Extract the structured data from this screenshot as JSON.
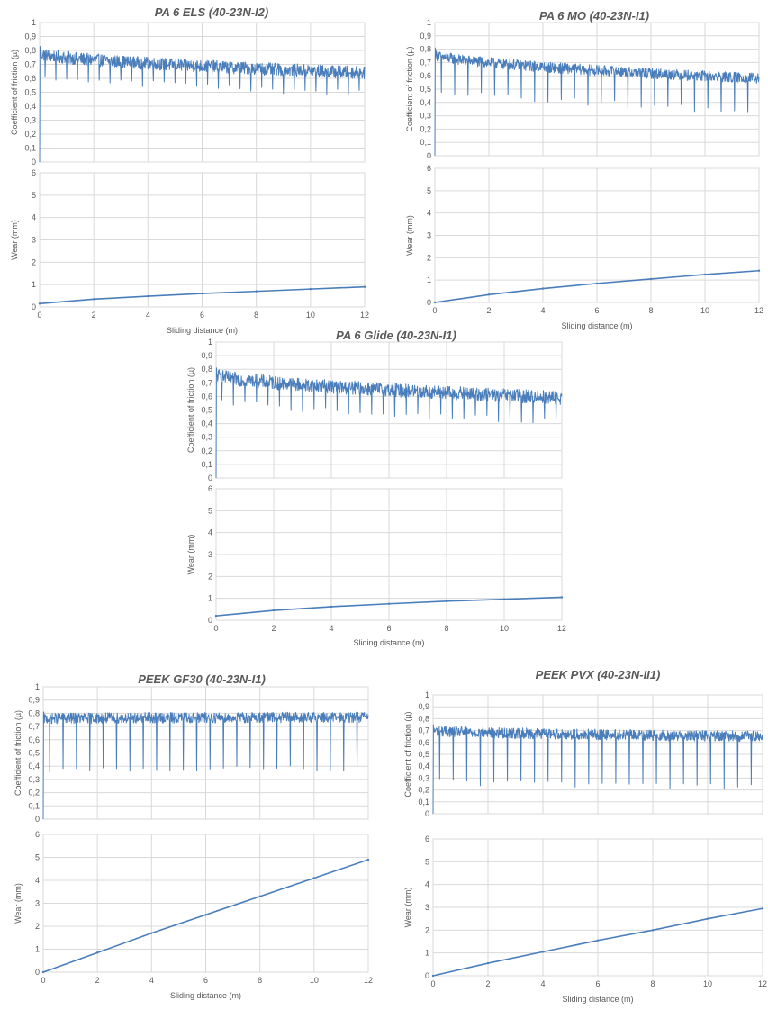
{
  "colors": {
    "series": "#4a7ebb",
    "grid": "#d9d9d9",
    "text": "#595959"
  },
  "chart_data": [
    {
      "type": "line",
      "title": "PA 6 ELS (40-23N-I2)",
      "cof": {
        "ylabel": "Coefficient of friction (µ)",
        "ylim": [
          0,
          1
        ],
        "yticks": [
          "0",
          "0,1",
          "0,2",
          "0,3",
          "0,4",
          "0,5",
          "0,6",
          "0,7",
          "0,8",
          "0,9",
          "1"
        ],
        "xlim": [
          0,
          12
        ],
        "start": 0.78,
        "end": 0.64,
        "noise": 0.09,
        "spikes": 30,
        "spike_depth": 0.12
      },
      "wear": {
        "ylabel": "Wear (mm)",
        "xlabel": "Sliding distance (m)",
        "ylim": [
          0,
          6
        ],
        "yticks": [
          "0",
          "1",
          "2",
          "3",
          "4",
          "5",
          "6"
        ],
        "xlim": [
          0,
          12
        ],
        "xticks": [
          "0",
          "2",
          "4",
          "6",
          "8",
          "10",
          "12"
        ],
        "x": [
          0,
          2,
          4,
          6,
          8,
          10,
          12
        ],
        "y": [
          0.15,
          0.35,
          0.48,
          0.6,
          0.7,
          0.8,
          0.9
        ]
      }
    },
    {
      "type": "line",
      "title": "PA 6 MO (40-23N-I1)",
      "cof": {
        "ylabel": "Coefficient of friction (µ)",
        "ylim": [
          0,
          1
        ],
        "yticks": [
          "0",
          "0,1",
          "0,2",
          "0,3",
          "0,4",
          "0,5",
          "0,6",
          "0,7",
          "0,8",
          "0,9",
          "1"
        ],
        "xlim": [
          0,
          12
        ],
        "start": 0.76,
        "end": 0.58,
        "noise": 0.08,
        "spikes": 24,
        "spike_depth": 0.22
      },
      "wear": {
        "ylabel": "Wear (mm)",
        "xlabel": "Sliding distance (m)",
        "ylim": [
          0,
          6
        ],
        "yticks": [
          "0",
          "1",
          "2",
          "3",
          "4",
          "5",
          "6"
        ],
        "xlim": [
          0,
          12
        ],
        "xticks": [
          "0",
          "2",
          "4",
          "6",
          "8",
          "10",
          "12"
        ],
        "x": [
          0,
          2,
          4,
          6,
          8,
          10,
          12
        ],
        "y": [
          0.0,
          0.35,
          0.62,
          0.85,
          1.05,
          1.25,
          1.42
        ]
      }
    },
    {
      "type": "line",
      "title": "PA 6 Glide (40-23N-I1)",
      "cof": {
        "ylabel": "Coefficient of friction (µ)",
        "ylim": [
          0,
          1
        ],
        "yticks": [
          "0",
          "0,1",
          "0,2",
          "0,3",
          "0,4",
          "0,5",
          "0,6",
          "0,7",
          "0,8",
          "0,9",
          "1"
        ],
        "xlim": [
          0,
          12
        ],
        "start": 0.76,
        "end": 0.59,
        "noise": 0.1,
        "spikes": 30,
        "spike_depth": 0.15
      },
      "wear": {
        "ylabel": "Wear (mm)",
        "xlabel": "Sliding distance (m)",
        "ylim": [
          0,
          6
        ],
        "yticks": [
          "0",
          "1",
          "2",
          "3",
          "4",
          "5",
          "6"
        ],
        "xlim": [
          0,
          12
        ],
        "xticks": [
          "0",
          "2",
          "4",
          "6",
          "8",
          "10",
          "12"
        ],
        "x": [
          0,
          2,
          4,
          6,
          8,
          10,
          12
        ],
        "y": [
          0.2,
          0.45,
          0.62,
          0.75,
          0.87,
          0.96,
          1.05
        ]
      }
    },
    {
      "type": "line",
      "title": "PEEK GF30 (40-23N-I1)",
      "cof": {
        "ylabel": "Coefficient of friction (µ)",
        "ylim": [
          0,
          1
        ],
        "yticks": [
          "0",
          "0,1",
          "0,2",
          "0,3",
          "0,4",
          "0,5",
          "0,6",
          "0,7",
          "0,8",
          "0,9",
          "1"
        ],
        "xlim": [
          0,
          12
        ],
        "start": 0.76,
        "end": 0.77,
        "noise": 0.08,
        "spikes": 24,
        "spike_depth": 0.36
      },
      "wear": {
        "ylabel": "Wear (mm)",
        "xlabel": "Sliding distance (m)",
        "ylim": [
          0,
          6
        ],
        "yticks": [
          "0",
          "1",
          "2",
          "3",
          "4",
          "5",
          "6"
        ],
        "xlim": [
          0,
          12
        ],
        "xticks": [
          "0",
          "2",
          "4",
          "6",
          "8",
          "10",
          "12"
        ],
        "x": [
          0,
          2,
          4,
          6,
          8,
          10,
          12
        ],
        "y": [
          0.0,
          0.85,
          1.7,
          2.5,
          3.3,
          4.1,
          4.9
        ]
      }
    },
    {
      "type": "line",
      "title": "PEEK PVX (40-23N-II1)",
      "cof": {
        "ylabel": "Coefficient of friction (µ)",
        "ylim": [
          0,
          1
        ],
        "yticks": [
          "0",
          "0,1",
          "0,2",
          "0,3",
          "0,4",
          "0,5",
          "0,6",
          "0,7",
          "0,8",
          "0,9",
          "1"
        ],
        "xlim": [
          0,
          12
        ],
        "start": 0.7,
        "end": 0.65,
        "noise": 0.09,
        "spikes": 24,
        "spike_depth": 0.4
      },
      "wear": {
        "ylabel": "Wear (mm)",
        "xlabel": "Sliding distance (m)",
        "ylim": [
          0,
          6
        ],
        "yticks": [
          "0",
          "1",
          "2",
          "3",
          "4",
          "5",
          "6"
        ],
        "xlim": [
          0,
          12
        ],
        "xticks": [
          "0",
          "2",
          "4",
          "6",
          "8",
          "10",
          "12"
        ],
        "x": [
          0,
          2,
          4,
          6,
          8,
          10,
          12
        ],
        "y": [
          0.0,
          0.55,
          1.05,
          1.55,
          2.0,
          2.5,
          2.95
        ]
      }
    }
  ]
}
